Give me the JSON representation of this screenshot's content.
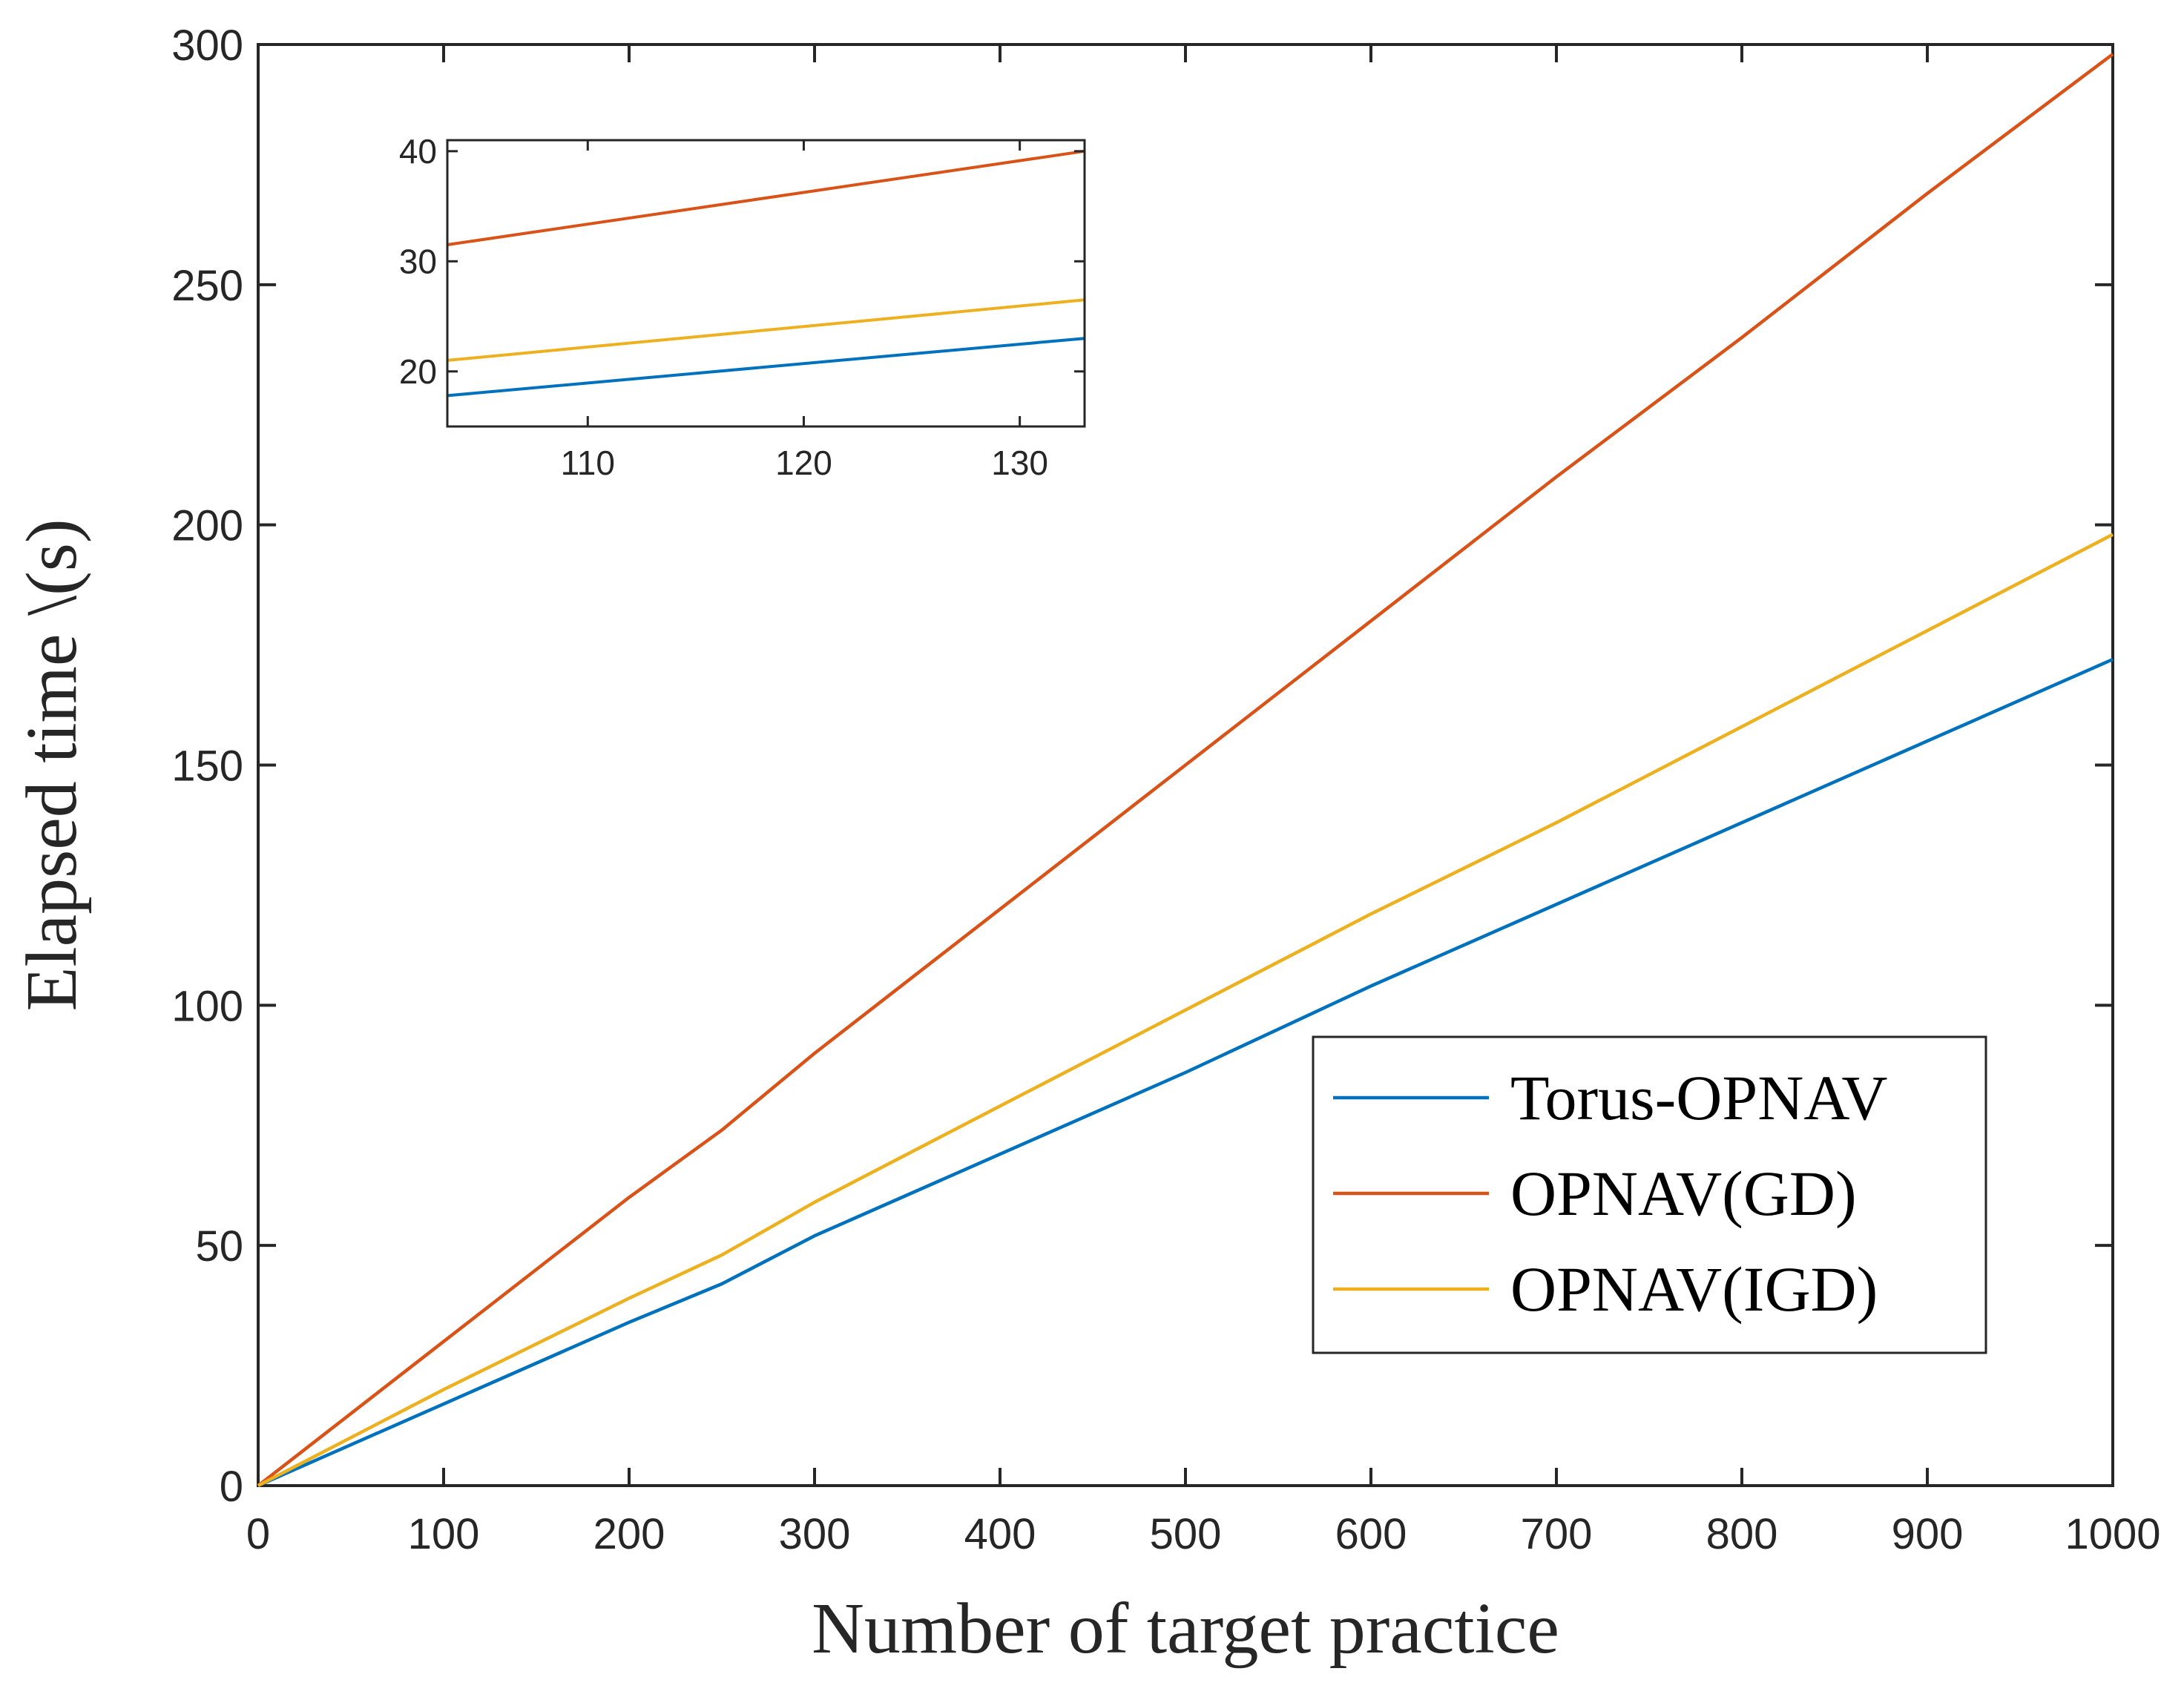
{
  "chart_data": {
    "type": "line",
    "xlabel": "Number of target practice",
    "ylabel": "Elapsed time \\(s)",
    "xlim": [
      0,
      1000
    ],
    "ylim": [
      0,
      300
    ],
    "xticks": [
      0,
      100,
      200,
      300,
      400,
      500,
      600,
      700,
      800,
      900,
      1000
    ],
    "yticks": [
      0,
      50,
      100,
      150,
      200,
      250,
      300
    ],
    "legend_position": "lower-right",
    "grid": false,
    "x": [
      0,
      100,
      200,
      250,
      300,
      400,
      500,
      600,
      700,
      800,
      900,
      1000
    ],
    "series": [
      {
        "name": "Torus-OPNAV",
        "color": "#0072BD",
        "values": [
          0,
          17,
          34,
          42,
          52,
          69,
          86,
          104,
          121,
          138,
          155,
          172
        ]
      },
      {
        "name": "OPNAV(GD)",
        "color": "#D95319",
        "values": [
          0,
          30,
          60,
          74,
          90,
          120,
          150,
          180,
          210,
          239,
          269,
          298
        ]
      },
      {
        "name": "OPNAV(IGD)",
        "color": "#EDB120",
        "values": [
          0,
          20,
          39,
          48,
          59,
          79,
          99,
          119,
          138,
          158,
          178,
          198
        ]
      }
    ],
    "inset": {
      "xlim": [
        103.5,
        133
      ],
      "ylim": [
        15,
        41
      ],
      "xticks": [
        110,
        120,
        130
      ],
      "yticks": [
        20,
        30,
        40
      ],
      "x": [
        103.5,
        133
      ],
      "series": [
        {
          "name": "Torus-OPNAV",
          "color": "#0072BD",
          "values": [
            17.8,
            23.0
          ]
        },
        {
          "name": "OPNAV(GD)",
          "color": "#D95319",
          "values": [
            31.5,
            40.0
          ]
        },
        {
          "name": "OPNAV(IGD)",
          "color": "#EDB120",
          "values": [
            21.0,
            26.5
          ]
        }
      ]
    }
  }
}
